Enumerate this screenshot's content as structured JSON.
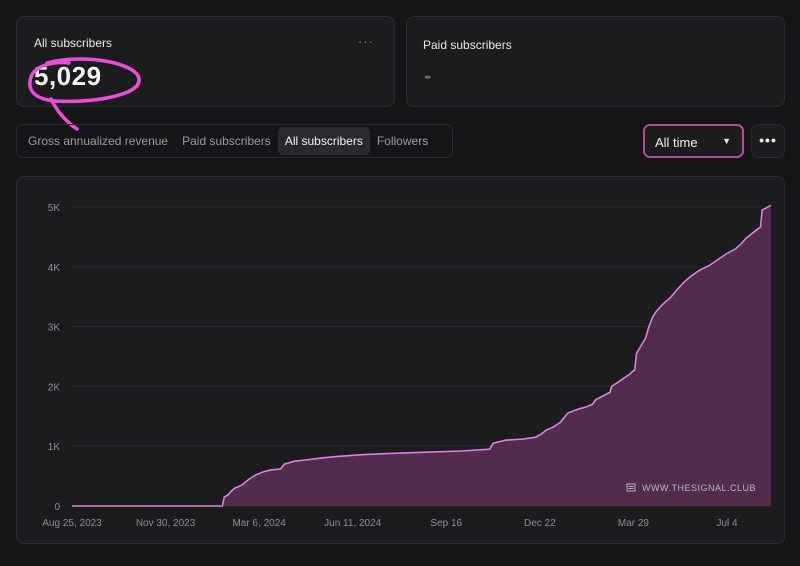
{
  "cards": {
    "all": {
      "title": "All subscribers",
      "value": "5,029",
      "menu": "···"
    },
    "paid": {
      "title": "Paid subscribers",
      "value": "-"
    }
  },
  "tabs": [
    {
      "label": "Gross annualized revenue",
      "active": false
    },
    {
      "label": "Paid subscribers",
      "active": false
    },
    {
      "label": "All subscribers",
      "active": true
    },
    {
      "label": "Followers",
      "active": false
    }
  ],
  "range_select": {
    "value": "All time",
    "caret": "▼"
  },
  "more_menu": "•••",
  "colors": {
    "accent": "#e27ee0",
    "fill": "#5a2f55",
    "annotation": "#e84ed8"
  },
  "chart_data": {
    "type": "area",
    "title": "All subscribers",
    "ylim": [
      0,
      5000
    ],
    "y_ticks": [
      "0",
      "1K",
      "2K",
      "3K",
      "4K",
      "5K"
    ],
    "x_ticks": [
      "Aug 25, 2023",
      "Nov 30, 2023",
      "Mar 6, 2024",
      "Jun 11, 2024",
      "Sep 16",
      "Dec 22",
      "Mar 29",
      "Jul 4"
    ],
    "x_range_days": [
      0,
      395
    ],
    "series": [
      {
        "name": "All subscribers",
        "points": [
          [
            0,
            0
          ],
          [
            85,
            0
          ],
          [
            86,
            150
          ],
          [
            88,
            180
          ],
          [
            90,
            250
          ],
          [
            92,
            300
          ],
          [
            96,
            350
          ],
          [
            100,
            450
          ],
          [
            104,
            520
          ],
          [
            108,
            570
          ],
          [
            112,
            600
          ],
          [
            118,
            620
          ],
          [
            120,
            700
          ],
          [
            126,
            750
          ],
          [
            132,
            770
          ],
          [
            140,
            800
          ],
          [
            150,
            830
          ],
          [
            165,
            860
          ],
          [
            180,
            880
          ],
          [
            200,
            900
          ],
          [
            220,
            920
          ],
          [
            236,
            950
          ],
          [
            238,
            1050
          ],
          [
            245,
            1100
          ],
          [
            255,
            1120
          ],
          [
            262,
            1150
          ],
          [
            265,
            1200
          ],
          [
            268,
            1270
          ],
          [
            272,
            1320
          ],
          [
            276,
            1400
          ],
          [
            280,
            1550
          ],
          [
            286,
            1620
          ],
          [
            290,
            1650
          ],
          [
            294,
            1700
          ],
          [
            296,
            1780
          ],
          [
            300,
            1840
          ],
          [
            304,
            1900
          ],
          [
            305,
            2000
          ],
          [
            310,
            2100
          ],
          [
            315,
            2200
          ],
          [
            318,
            2280
          ],
          [
            319,
            2550
          ],
          [
            322,
            2700
          ],
          [
            324,
            2800
          ],
          [
            326,
            3000
          ],
          [
            328,
            3150
          ],
          [
            330,
            3250
          ],
          [
            334,
            3380
          ],
          [
            338,
            3480
          ],
          [
            342,
            3620
          ],
          [
            346,
            3750
          ],
          [
            350,
            3850
          ],
          [
            355,
            3950
          ],
          [
            360,
            4020
          ],
          [
            365,
            4120
          ],
          [
            370,
            4220
          ],
          [
            375,
            4300
          ],
          [
            378,
            4380
          ],
          [
            381,
            4480
          ],
          [
            384,
            4550
          ],
          [
            387,
            4620
          ],
          [
            389,
            4660
          ],
          [
            390,
            4950
          ],
          [
            392,
            4980
          ],
          [
            395,
            5029
          ]
        ]
      }
    ],
    "watermark": "WWW.THESIGNAL.CLUB"
  }
}
